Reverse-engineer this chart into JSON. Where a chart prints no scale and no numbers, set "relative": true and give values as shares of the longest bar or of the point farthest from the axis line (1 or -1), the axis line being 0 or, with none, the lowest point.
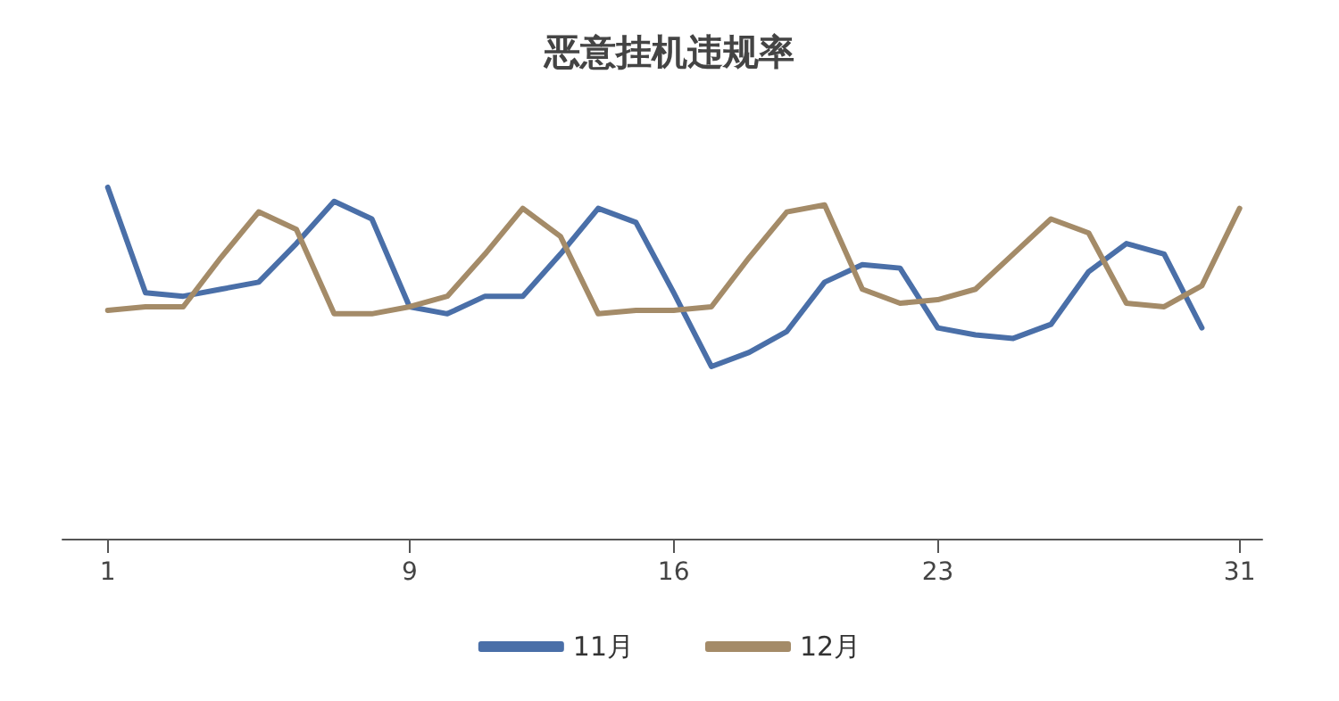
{
  "chart_data": {
    "type": "line",
    "title": "恶意挂机违规率",
    "relative": true,
    "legend": "bottom",
    "grid": false,
    "marker": "none",
    "line_style": "solid",
    "xlim": [
      -0.2,
      31.6
    ],
    "xticks": [
      1,
      9,
      16,
      23,
      31
    ],
    "series": [
      {
        "name": "11月",
        "color": "#4a6fa8",
        "x": [
          1,
          2,
          3,
          4,
          5,
          6,
          7,
          8,
          9,
          10,
          11,
          12,
          13,
          14,
          15,
          16,
          17,
          18,
          19,
          20,
          21,
          22,
          23,
          24,
          25,
          26,
          27,
          28,
          29,
          30
        ],
        "values": [
          1.0,
          0.7,
          0.69,
          0.71,
          0.73,
          0.84,
          0.96,
          0.91,
          0.66,
          0.64,
          0.69,
          0.69,
          0.81,
          0.94,
          0.9,
          0.7,
          0.49,
          0.53,
          0.59,
          0.73,
          0.78,
          0.77,
          0.6,
          0.58,
          0.57,
          0.61,
          0.76,
          0.84,
          0.81,
          0.6
        ]
      },
      {
        "name": "12月",
        "color": "#a48b68",
        "x": [
          1,
          2,
          3,
          4,
          5,
          6,
          7,
          8,
          9,
          10,
          11,
          12,
          13,
          14,
          15,
          16,
          17,
          18,
          19,
          20,
          21,
          22,
          23,
          24,
          25,
          26,
          27,
          28,
          29,
          30,
          31
        ],
        "values": [
          0.65,
          0.66,
          0.66,
          0.8,
          0.93,
          0.88,
          0.64,
          0.64,
          0.66,
          0.69,
          0.81,
          0.94,
          0.86,
          0.64,
          0.65,
          0.65,
          0.66,
          0.8,
          0.93,
          0.95,
          0.71,
          0.67,
          0.68,
          0.71,
          0.81,
          0.91,
          0.87,
          0.67,
          0.66,
          0.72,
          0.94
        ]
      }
    ]
  }
}
